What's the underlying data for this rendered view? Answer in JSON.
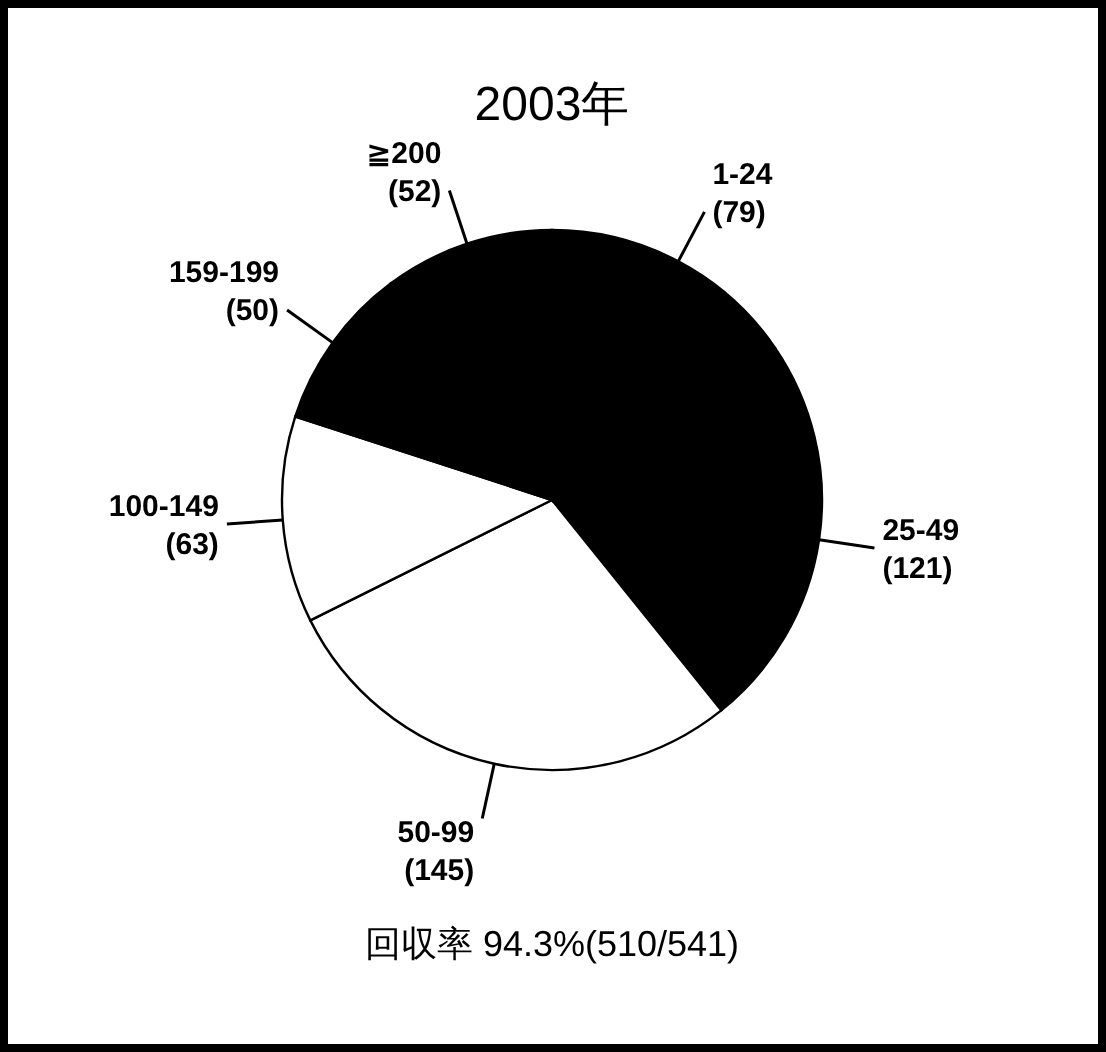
{
  "chart_data": {
    "type": "pie",
    "title": "2003年",
    "categories": [
      "1-24",
      "25-49",
      "50-99",
      "100-149",
      "159-199",
      "≧200"
    ],
    "values": [
      79,
      121,
      145,
      63,
      50,
      52
    ],
    "value_labels": [
      "(79)",
      "(121)",
      "(145)",
      "(63)",
      "(50)",
      "(52)"
    ],
    "colors": [
      "#000000",
      "#000000",
      "#ffffff",
      "#ffffff",
      "#000000",
      "#000000"
    ],
    "annotations": [
      "回収率  94.3%(510/541)"
    ]
  }
}
